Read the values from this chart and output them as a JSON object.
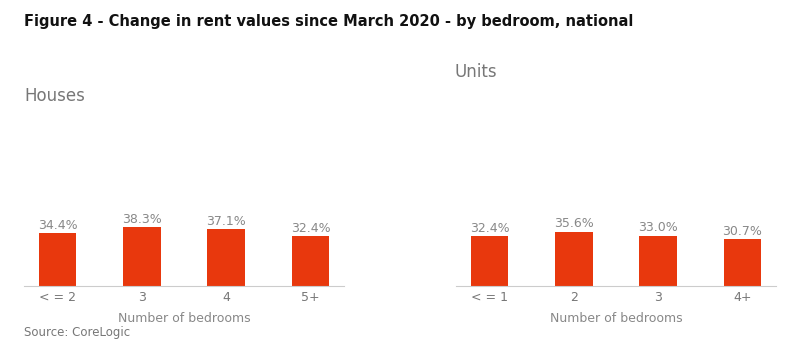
{
  "title": "Figure 4 - Change in rent values since March 2020 - by bedroom, national",
  "source": "Source: CoreLogic",
  "bar_color": "#E8380D",
  "label_color": "#888888",
  "houses_label": "Houses",
  "units_label": "Units",
  "houses_categories": [
    "< = 2",
    "3",
    "4",
    "5+"
  ],
  "houses_values": [
    34.4,
    38.3,
    37.1,
    32.4
  ],
  "units_categories": [
    "< = 1",
    "2",
    "3",
    "4+"
  ],
  "units_values": [
    32.4,
    35.6,
    33.0,
    30.7
  ],
  "xlabel": "Number of bedrooms",
  "ylim": [
    0,
    100
  ],
  "background_color": "#ffffff",
  "title_fontsize": 10.5,
  "label_fontsize": 9,
  "axis_label_fontsize": 9,
  "subtitle_fontsize": 12,
  "source_fontsize": 8.5,
  "bar_width": 0.45,
  "title_color": "#111111",
  "subtitle_color": "#777777",
  "tick_color": "#777777",
  "xlabel_color": "#888888"
}
